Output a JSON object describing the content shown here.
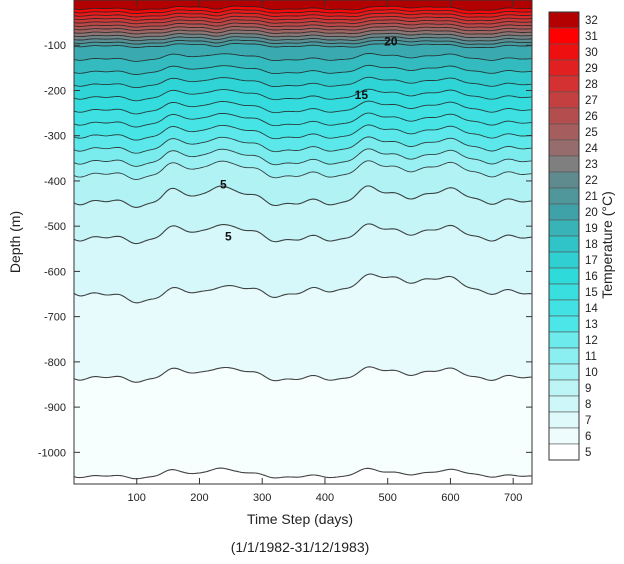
{
  "chart_data": {
    "type": "heatmap",
    "subtype": "depth-time contour plot (filled contours)",
    "title": "",
    "xlabel": "Time Step (days)",
    "xlabel_sub": "(1/1/1982-31/12/1983)",
    "ylabel": "Depth (m)",
    "colorbar_label": "Temperature (°C)",
    "xlim": [
      0,
      730
    ],
    "ylim": [
      0,
      -1070
    ],
    "x_ticks": [
      100,
      200,
      300,
      400,
      500,
      600,
      700
    ],
    "y_ticks": [
      -100,
      -200,
      -300,
      -400,
      -500,
      -600,
      -700,
      -800,
      -900,
      -1000
    ],
    "colorbar_levels": [
      32,
      31,
      30,
      29,
      28,
      27,
      26,
      25,
      24,
      23,
      22,
      21,
      20,
      19,
      18,
      17,
      16,
      15,
      14,
      13,
      12,
      11,
      10,
      9,
      8,
      7,
      6,
      5
    ],
    "contour_labels": [
      {
        "text": "20",
        "x": 505,
        "y": -92
      },
      {
        "text": "15",
        "x": 458,
        "y": -210
      },
      {
        "text": "5",
        "x": 238,
        "y": -408
      },
      {
        "text": "5",
        "x": 246,
        "y": -523
      }
    ],
    "isotherms_approx_depth_m": [
      {
        "temp": 9,
        "mean_depth": -440
      },
      {
        "temp": 8,
        "mean_depth": -520
      },
      {
        "temp": 7,
        "mean_depth": -640
      },
      {
        "temp": 6,
        "mean_depth": -830
      },
      {
        "temp": 5,
        "mean_depth": -1050
      }
    ],
    "colors": {
      "warm": "#e60000",
      "mid": "#2ee0e0",
      "cold": "#ffffff"
    }
  }
}
